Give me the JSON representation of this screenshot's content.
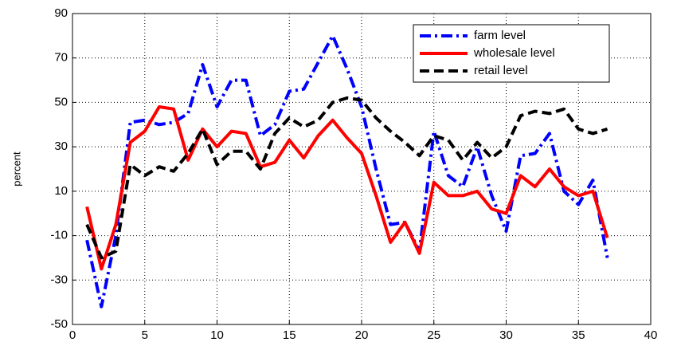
{
  "chart_data": {
    "type": "line",
    "y_label": "percent",
    "x": [
      1,
      2,
      3,
      4,
      5,
      6,
      7,
      8,
      9,
      10,
      11,
      12,
      13,
      14,
      15,
      16,
      17,
      18,
      19,
      20,
      21,
      22,
      23,
      24,
      25,
      26,
      27,
      28,
      29,
      30,
      31,
      32,
      33,
      34,
      35,
      36,
      37
    ],
    "series": [
      {
        "name": "farm level",
        "color": "#0000ff",
        "style": "dashdot",
        "values": [
          -12,
          -42,
          -10,
          41,
          42,
          40,
          41,
          45,
          67,
          48,
          60,
          60,
          35,
          40,
          55,
          56,
          68,
          80,
          65,
          48,
          20,
          -5,
          -4,
          -17,
          37,
          17,
          12,
          30,
          8,
          -8,
          26,
          27,
          36,
          10,
          4,
          15,
          -20
        ]
      },
      {
        "name": "wholesale level",
        "color": "#ff0000",
        "style": "solid",
        "values": [
          3,
          -25,
          -5,
          32,
          37,
          48,
          47,
          24,
          38,
          30,
          37,
          36,
          21,
          23,
          33,
          25,
          35,
          42,
          34,
          27,
          8,
          -13,
          -4,
          -18,
          14,
          8,
          8,
          10,
          2,
          0,
          17,
          12,
          20,
          12,
          8,
          10,
          -11
        ]
      },
      {
        "name": "retail level",
        "color": "#000000",
        "style": "dashed",
        "values": [
          -5,
          -20,
          -17,
          22,
          17,
          21,
          19,
          27,
          38,
          22,
          28,
          28,
          20,
          36,
          43,
          39,
          42,
          50,
          52,
          51,
          43,
          37,
          32,
          26,
          35,
          33,
          24,
          32,
          25,
          30,
          44,
          46,
          45,
          47,
          38,
          36,
          38
        ]
      }
    ],
    "xlim": [
      0,
      40
    ],
    "xticks": [
      0,
      5,
      10,
      15,
      20,
      25,
      30,
      35,
      40
    ],
    "ylim": [
      -50,
      90
    ],
    "yticks": [
      -50,
      -30,
      -10,
      10,
      30,
      50,
      70,
      90
    ],
    "grid": true,
    "legend": "top-right"
  }
}
